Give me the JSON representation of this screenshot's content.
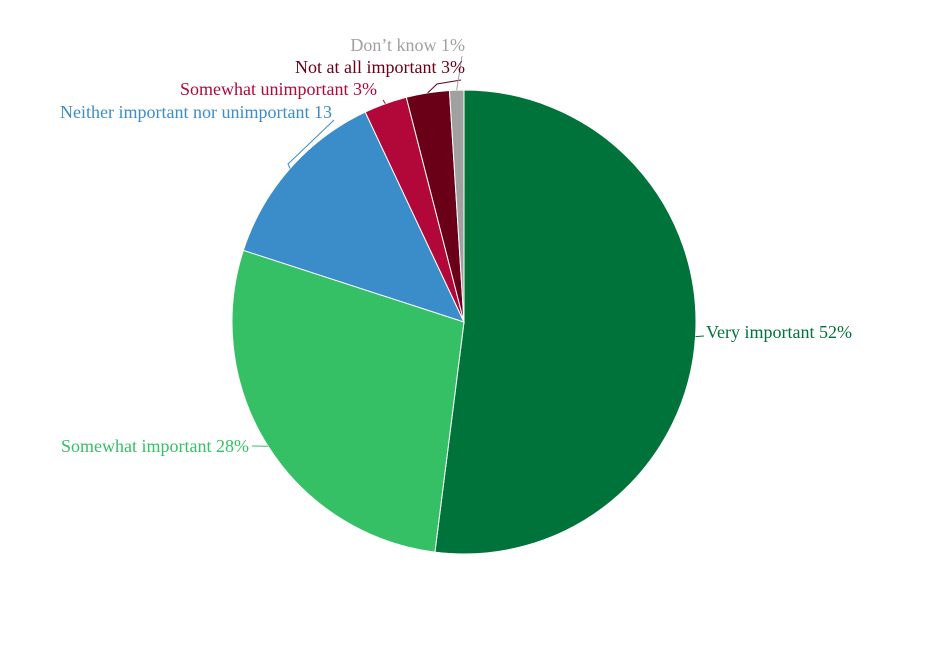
{
  "chart_data": {
    "type": "pie",
    "slices": [
      {
        "label": "Very important 52%",
        "value": 52,
        "color": "#00733b"
      },
      {
        "label": "Somewhat important 28%",
        "value": 28,
        "color": "#36c066"
      },
      {
        "label": "Neither important nor unimportant 13",
        "value": 13,
        "color": "#3b8dca"
      },
      {
        "label": "Somewhat unimportant 3%",
        "value": 3,
        "color": "#b10839"
      },
      {
        "label": "Not at all important 3%",
        "value": 3,
        "color": "#690018"
      },
      {
        "label": "Don’t know 1%",
        "value": 1,
        "color": "#a0a0a0"
      }
    ]
  }
}
